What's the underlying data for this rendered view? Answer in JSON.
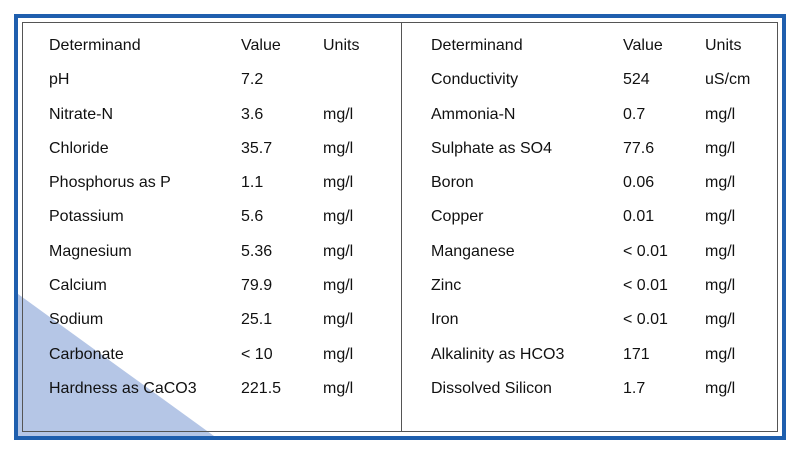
{
  "headers": {
    "determinand": "Determinand",
    "value": "Value",
    "units": "Units"
  },
  "left_rows": [
    {
      "name": "pH",
      "value": "7.2",
      "units": ""
    },
    {
      "name": "Nitrate-N",
      "value": "3.6",
      "units": "mg/l"
    },
    {
      "name": "Chloride",
      "value": "35.7",
      "units": "mg/l"
    },
    {
      "name": "Phosphorus as P",
      "value": "1.1",
      "units": "mg/l"
    },
    {
      "name": "Potassium",
      "value": "5.6",
      "units": "mg/l"
    },
    {
      "name": "Magnesium",
      "value": "5.36",
      "units": "mg/l"
    },
    {
      "name": "Calcium",
      "value": "79.9",
      "units": "mg/l"
    },
    {
      "name": "Sodium",
      "value": "25.1",
      "units": "mg/l"
    },
    {
      "name": "Carbonate",
      "value": "< 10",
      "units": "mg/l"
    },
    {
      "name": "Hardness as CaCO3",
      "value": "221.5",
      "units": "mg/l"
    }
  ],
  "right_rows": [
    {
      "name": "Conductivity",
      "value": "524",
      "units": "uS/cm"
    },
    {
      "name": "Ammonia-N",
      "value": "0.7",
      "units": "mg/l"
    },
    {
      "name": "Sulphate as SO4",
      "value": "77.6",
      "units": "mg/l"
    },
    {
      "name": "Boron",
      "value": "0.06",
      "units": "mg/l"
    },
    {
      "name": "Copper",
      "value": "0.01",
      "units": "mg/l"
    },
    {
      "name": "Manganese",
      "value": "< 0.01",
      "units": "mg/l"
    },
    {
      "name": "Zinc",
      "value": "< 0.01",
      "units": "mg/l"
    },
    {
      "name": "Iron",
      "value": "< 0.01",
      "units": "mg/l"
    },
    {
      "name": "Alkalinity as HCO3",
      "value": "171",
      "units": "mg/l"
    },
    {
      "name": "Dissolved Silicon",
      "value": "1.7",
      "units": "mg/l"
    }
  ],
  "colors": {
    "frame_border": "#1f5fae",
    "corner_wedge": "#b5c6e6"
  }
}
